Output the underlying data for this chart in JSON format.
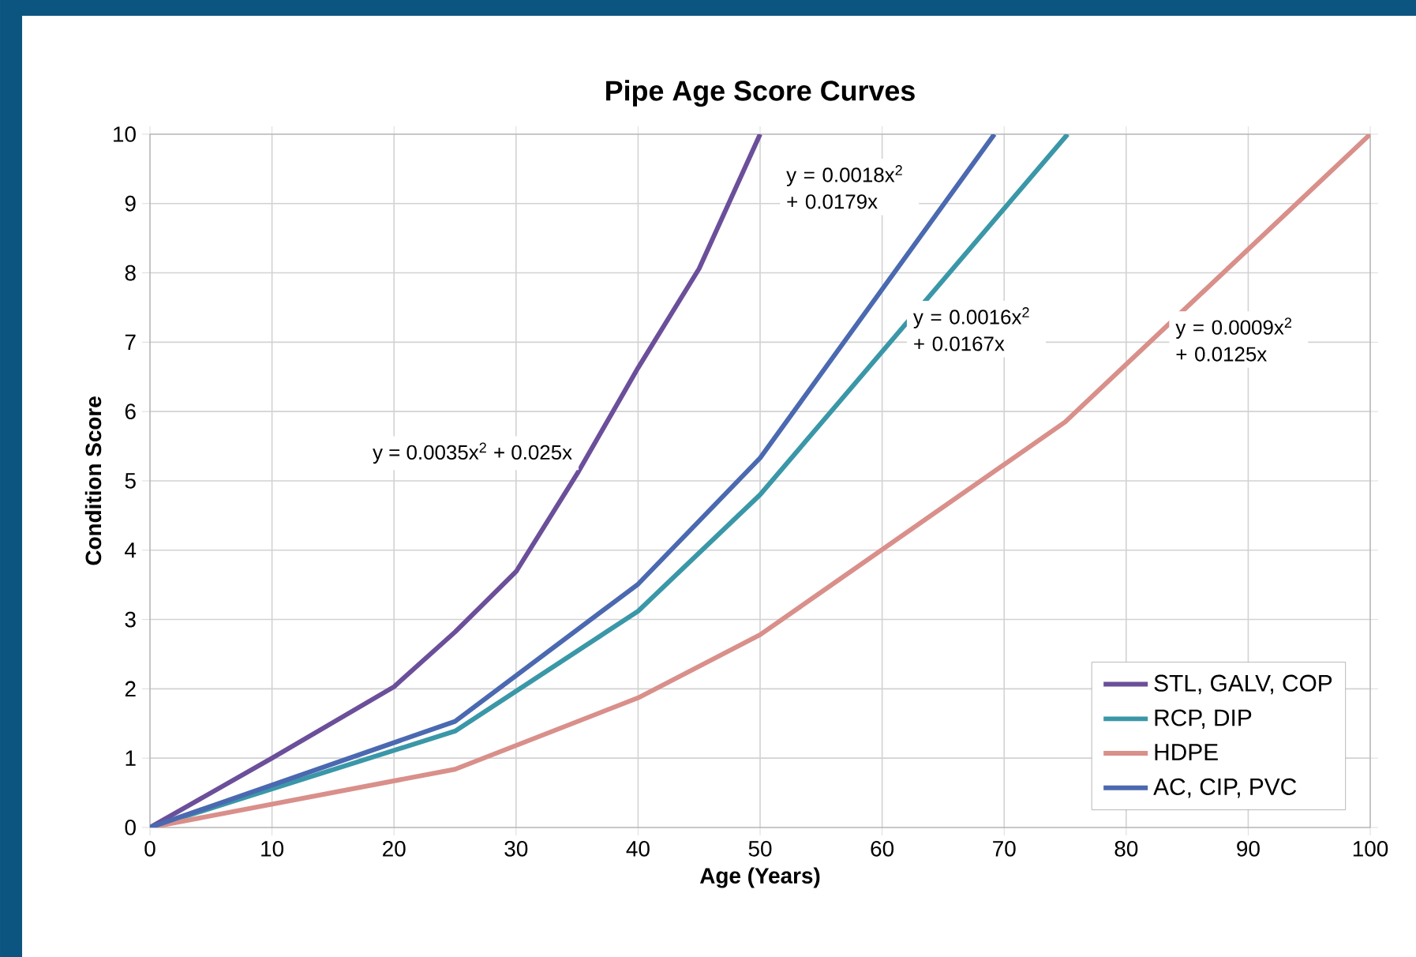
{
  "chart_data": {
    "type": "line",
    "title": "Pipe Age Score Curves",
    "xlabel": "Age (Years)",
    "ylabel": "Condition Score",
    "xlim": [
      0,
      100
    ],
    "xticks": [
      0,
      10,
      20,
      30,
      40,
      50,
      60,
      70,
      80,
      90,
      100
    ],
    "ylim": [
      0,
      10
    ],
    "yticks": [
      0,
      1,
      2,
      3,
      4,
      5,
      6,
      7,
      8,
      9,
      10
    ],
    "grid": true,
    "legend": "bottom right",
    "marker": "none",
    "line_style": "solid",
    "series": [
      {
        "name": "STL, GALV, COP",
        "color": "#6b4f9a",
        "x": [
          0,
          10,
          20,
          25,
          30,
          35,
          40,
          45,
          50
        ],
        "values": [
          0,
          1.0,
          2.03,
          2.82,
          3.69,
          5.1,
          6.63,
          8.06,
          10
        ]
      },
      {
        "name": "RCP, DIP",
        "color": "#3a97a8",
        "x": [
          0,
          25,
          40,
          50,
          75.2
        ],
        "values": [
          0,
          1.39,
          3.12,
          4.8,
          10
        ]
      },
      {
        "name": "HDPE",
        "color": "#d98f8a",
        "x": [
          0,
          25,
          40,
          50,
          75,
          100
        ],
        "values": [
          0,
          0.84,
          1.87,
          2.78,
          5.85,
          10
        ]
      },
      {
        "name": "AC, CIP, PVC",
        "color": "#4a69b0",
        "x": [
          0,
          25,
          40,
          50,
          69.2
        ],
        "values": [
          0,
          1.53,
          3.51,
          5.33,
          10
        ]
      }
    ],
    "annotations": [
      "y = 0.0035x$^{2}$ + 0.025x",
      "y = 0.0018x$^{2}$ + 0.0179x",
      "y = 0.0016x$^{2}$ + 0.0167x",
      "y = 0.0009x$^{2}$ + 0.0125x"
    ]
  }
}
